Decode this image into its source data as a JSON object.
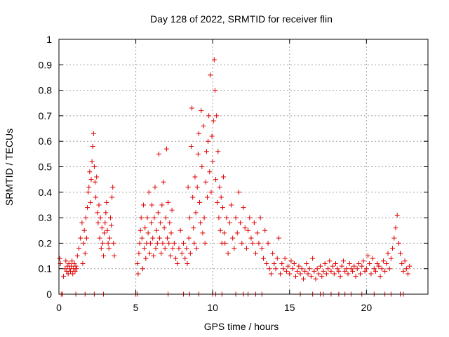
{
  "chart_data": {
    "type": "scatter",
    "title": "Day 128 of 2022, SRMTID for receiver flin",
    "xlabel": "GPS time / hours",
    "ylabel": "SRMTID / TECUs",
    "xlim": [
      0,
      24
    ],
    "ylim": [
      0,
      1
    ],
    "x_ticks": [
      0,
      5,
      10,
      15,
      20
    ],
    "x_tick_labels": [
      "0",
      "5",
      "10",
      "15",
      "20"
    ],
    "y_ticks": [
      0,
      0.1,
      0.2,
      0.3,
      0.4,
      0.5,
      0.6,
      0.7,
      0.8,
      0.9,
      1
    ],
    "y_tick_labels": [
      "0",
      "0.1",
      "0.2",
      "0.3",
      "0.4",
      "0.5",
      "0.6",
      "0.7",
      "0.8",
      "0.9",
      "1"
    ],
    "grid": true,
    "marker": "plus",
    "marker_color": "#e00000",
    "series": [
      {
        "name": "SRMTID",
        "x": [
          0.05,
          0.1,
          0.3,
          0.4,
          0.45,
          0.5,
          0.55,
          0.6,
          0.65,
          0.7,
          0.75,
          0.8,
          0.85,
          0.9,
          0.95,
          1.0,
          1.05,
          1.1,
          1.15,
          1.2,
          1.3,
          1.4,
          1.5,
          1.55,
          1.6,
          1.65,
          1.7,
          1.75,
          1.8,
          1.85,
          1.9,
          1.95,
          2.0,
          2.05,
          2.1,
          2.15,
          2.2,
          2.25,
          2.3,
          2.35,
          2.4,
          2.45,
          2.5,
          2.55,
          2.6,
          2.65,
          2.7,
          2.75,
          2.8,
          2.85,
          2.9,
          2.95,
          3.0,
          3.05,
          3.1,
          3.15,
          3.2,
          3.25,
          3.3,
          3.35,
          3.4,
          3.45,
          3.5,
          3.55,
          3.6,
          5.1,
          5.15,
          5.2,
          5.25,
          5.3,
          5.35,
          5.4,
          5.45,
          5.5,
          5.55,
          5.6,
          5.65,
          5.7,
          5.75,
          5.8,
          5.85,
          5.9,
          5.95,
          6.0,
          6.05,
          6.1,
          6.15,
          6.2,
          6.25,
          6.3,
          6.35,
          6.4,
          6.45,
          6.5,
          6.55,
          6.6,
          6.65,
          6.7,
          6.75,
          6.8,
          6.85,
          6.9,
          6.95,
          7.0,
          7.05,
          7.1,
          7.15,
          7.2,
          7.25,
          7.3,
          7.35,
          7.4,
          7.5,
          7.6,
          7.7,
          7.8,
          7.9,
          8.0,
          8.1,
          8.2,
          8.3,
          8.35,
          8.4,
          8.45,
          8.5,
          8.55,
          8.6,
          8.65,
          8.7,
          8.75,
          8.8,
          8.85,
          8.9,
          8.95,
          9.0,
          9.05,
          9.1,
          9.15,
          9.2,
          9.25,
          9.3,
          9.35,
          9.4,
          9.45,
          9.5,
          9.55,
          9.6,
          9.65,
          9.7,
          9.75,
          9.8,
          9.85,
          9.9,
          9.95,
          10.0,
          10.05,
          10.1,
          10.15,
          10.2,
          10.25,
          10.3,
          10.35,
          10.4,
          10.45,
          10.5,
          10.55,
          10.6,
          10.65,
          10.7,
          10.75,
          10.8,
          10.9,
          11.0,
          11.1,
          11.2,
          11.3,
          11.4,
          11.5,
          11.6,
          11.7,
          11.8,
          11.9,
          12.0,
          12.1,
          12.2,
          12.3,
          12.4,
          12.5,
          12.6,
          12.7,
          12.8,
          12.9,
          13.0,
          13.1,
          13.2,
          13.3,
          13.4,
          13.5,
          13.6,
          13.7,
          13.8,
          13.9,
          14.0,
          14.1,
          14.2,
          14.3,
          14.4,
          14.5,
          14.6,
          14.7,
          14.8,
          14.9,
          15.0,
          15.1,
          15.2,
          15.3,
          15.4,
          15.5,
          15.6,
          15.7,
          15.8,
          15.9,
          16.0,
          16.1,
          16.2,
          16.3,
          16.4,
          16.5,
          16.6,
          16.7,
          16.8,
          16.9,
          17.0,
          17.1,
          17.2,
          17.3,
          17.4,
          17.5,
          17.6,
          17.7,
          17.8,
          17.9,
          18.0,
          18.1,
          18.2,
          18.3,
          18.4,
          18.5,
          18.6,
          18.7,
          18.8,
          18.9,
          19.0,
          19.1,
          19.2,
          19.3,
          19.4,
          19.5,
          19.6,
          19.7,
          19.8,
          19.9,
          20.0,
          20.1,
          20.2,
          20.3,
          20.4,
          20.5,
          20.6,
          20.7,
          20.8,
          20.9,
          21.0,
          21.1,
          21.2,
          21.3,
          21.4,
          21.5,
          21.6,
          21.7,
          21.8,
          21.9,
          22.0,
          22.1,
          22.2,
          22.3,
          22.4,
          22.5,
          22.6,
          22.7,
          22.8
        ],
        "y": [
          0.14,
          0.12,
          0.07,
          0.1,
          0.13,
          0.09,
          0.11,
          0.08,
          0.12,
          0.1,
          0.09,
          0.11,
          0.13,
          0.08,
          0.1,
          0.12,
          0.09,
          0.11,
          0.1,
          0.15,
          0.18,
          0.22,
          0.28,
          0.12,
          0.2,
          0.25,
          0.16,
          0.3,
          0.22,
          0.34,
          0.4,
          0.42,
          0.48,
          0.36,
          0.45,
          0.52,
          0.58,
          0.63,
          0.5,
          0.44,
          0.38,
          0.46,
          0.32,
          0.28,
          0.35,
          0.22,
          0.3,
          0.18,
          0.26,
          0.2,
          0.15,
          0.24,
          0.28,
          0.32,
          0.36,
          0.25,
          0.2,
          0.18,
          0.22,
          0.3,
          0.27,
          0.38,
          0.42,
          0.2,
          0.15,
          0.12,
          0.08,
          0.16,
          0.2,
          0.25,
          0.3,
          0.22,
          0.1,
          0.35,
          0.18,
          0.26,
          0.14,
          0.2,
          0.3,
          0.24,
          0.4,
          0.16,
          0.2,
          0.28,
          0.35,
          0.22,
          0.15,
          0.3,
          0.42,
          0.18,
          0.25,
          0.2,
          0.32,
          0.55,
          0.22,
          0.28,
          0.16,
          0.35,
          0.2,
          0.44,
          0.26,
          0.18,
          0.3,
          0.57,
          0.22,
          0.36,
          0.2,
          0.28,
          0.15,
          0.24,
          0.33,
          0.18,
          0.2,
          0.14,
          0.12,
          0.18,
          0.25,
          0.16,
          0.2,
          0.14,
          0.18,
          0.12,
          0.42,
          0.22,
          0.3,
          0.16,
          0.58,
          0.73,
          0.38,
          0.26,
          0.2,
          0.46,
          0.32,
          0.18,
          0.42,
          0.55,
          0.63,
          0.36,
          0.28,
          0.72,
          0.5,
          0.24,
          0.66,
          0.3,
          0.2,
          0.44,
          0.56,
          0.38,
          0.6,
          0.7,
          0.48,
          0.86,
          0.4,
          0.62,
          0.52,
          0.68,
          0.92,
          0.8,
          0.45,
          0.7,
          0.36,
          0.56,
          0.3,
          0.42,
          0.25,
          0.38,
          0.2,
          0.34,
          0.46,
          0.24,
          0.2,
          0.3,
          0.16,
          0.28,
          0.35,
          0.22,
          0.18,
          0.3,
          0.24,
          0.4,
          0.28,
          0.2,
          0.34,
          0.26,
          0.18,
          0.25,
          0.3,
          0.22,
          0.2,
          0.28,
          0.16,
          0.24,
          0.2,
          0.3,
          0.18,
          0.14,
          0.25,
          0.12,
          0.2,
          0.1,
          0.08,
          0.16,
          0.12,
          0.1,
          0.14,
          0.22,
          0.08,
          0.12,
          0.1,
          0.14,
          0.09,
          0.11,
          0.08,
          0.13,
          0.1,
          0.12,
          0.07,
          0.09,
          0.11,
          0.08,
          0.1,
          0.06,
          0.09,
          0.12,
          0.08,
          0.1,
          0.07,
          0.14,
          0.09,
          0.06,
          0.1,
          0.08,
          0.11,
          0.07,
          0.09,
          0.12,
          0.08,
          0.1,
          0.13,
          0.09,
          0.11,
          0.08,
          0.12,
          0.1,
          0.09,
          0.07,
          0.11,
          0.13,
          0.09,
          0.1,
          0.08,
          0.12,
          0.1,
          0.09,
          0.11,
          0.07,
          0.1,
          0.12,
          0.08,
          0.11,
          0.13,
          0.09,
          0.1,
          0.15,
          0.12,
          0.08,
          0.14,
          0.1,
          0.09,
          0.12,
          0.11,
          0.07,
          0.1,
          0.13,
          0.09,
          0.12,
          0.16,
          0.1,
          0.14,
          0.18,
          0.22,
          0.26,
          0.31,
          0.2,
          0.16,
          0.12,
          0.09,
          0.13,
          0.1,
          0.08,
          0.11
        ]
      }
    ],
    "baseline_marks_x": [
      0.15,
      0.25,
      1.1,
      1.7,
      2.3,
      2.9,
      5.0,
      5.1,
      7.1,
      8.1,
      8.5,
      9.1,
      10.0,
      10.2,
      10.6,
      11.5,
      12.0,
      12.3,
      12.8,
      13.2,
      15.7,
      16.5,
      17.0,
      17.2,
      17.7,
      18.2,
      18.6,
      19.0,
      19.7,
      20.5,
      21.2,
      21.6,
      22.2,
      22.4
    ]
  }
}
